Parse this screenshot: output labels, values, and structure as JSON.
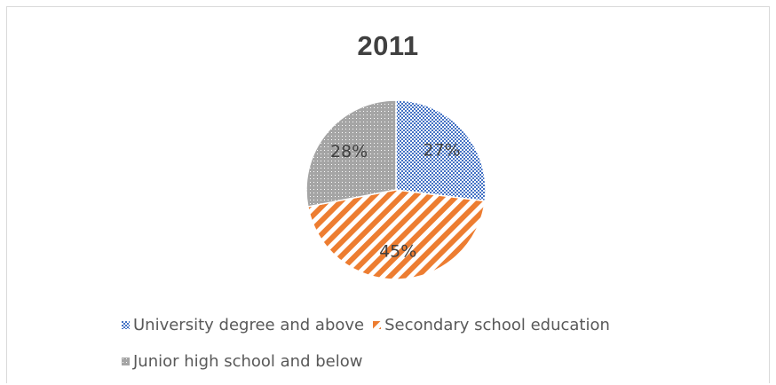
{
  "chart_data": {
    "type": "pie",
    "title": "2011",
    "slices": [
      {
        "label": "University degree and above",
        "value": 27,
        "display": "27%",
        "color": "#4472c4",
        "pattern": "dots-fine"
      },
      {
        "label": "Secondary school education",
        "value": 45,
        "display": "45%",
        "color": "#ed7d31",
        "pattern": "diagonal-stripes"
      },
      {
        "label": "Junior high school and below",
        "value": 28,
        "display": "28%",
        "color": "#a5a5a5",
        "pattern": "dots"
      }
    ],
    "legend_position": "bottom",
    "start_angle": "12 o'clock, clockwise"
  }
}
